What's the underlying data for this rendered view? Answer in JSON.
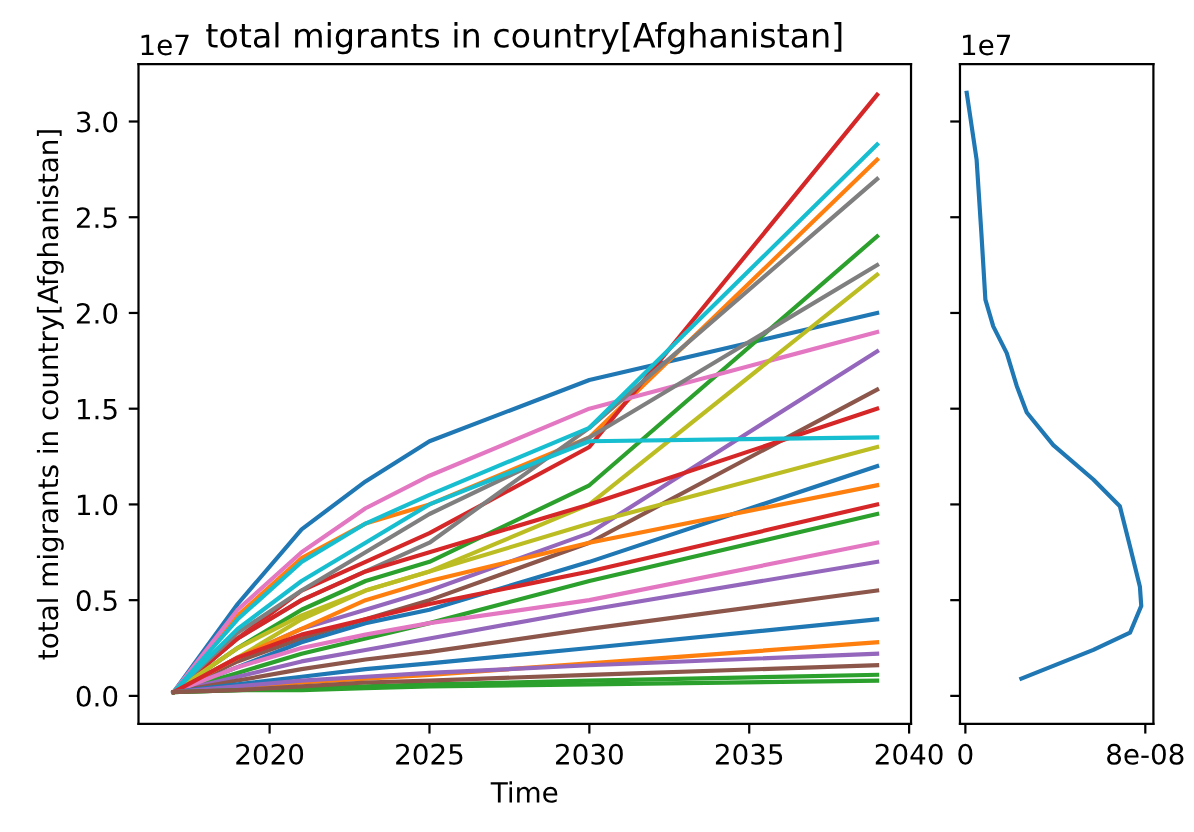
{
  "chart_data": [
    {
      "type": "line",
      "title": "total migrants in country[Afghanistan]",
      "xlabel": "Time",
      "ylabel": "total migrants in country[Afghanistan]",
      "annotations": [
        "1e7"
      ],
      "x": [
        2017,
        2019,
        2021,
        2023,
        2025,
        2030,
        2039
      ],
      "xlim": [
        2015.9,
        2040.06
      ],
      "xticks": [
        2020,
        2025,
        2030,
        2035,
        2040
      ],
      "ylim": [
        -0.146,
        3.3
      ],
      "yticks": [
        {
          "value": 0,
          "label": "0.0"
        },
        0.5,
        {
          "value": 1,
          "label": "1.0"
        },
        1.5,
        {
          "value": 2,
          "label": "2.0"
        },
        2.5,
        {
          "value": 3,
          "label": "3.0"
        }
      ],
      "grid": false,
      "legend": false,
      "marker": "none",
      "line_style": "solid",
      "series": [
        {
          "color": "#1f77b4",
          "values": [
            0.02,
            0.48,
            0.87,
            1.12,
            1.33,
            1.65,
            2.0
          ]
        },
        {
          "color": "#ff7f0e",
          "values": [
            0.02,
            0.42,
            0.72,
            0.9,
            1.0,
            1.35,
            2.8
          ]
        },
        {
          "color": "#2ca02c",
          "values": [
            0.02,
            0.25,
            0.45,
            0.6,
            0.7,
            1.1,
            2.4
          ]
        },
        {
          "color": "#d62728",
          "values": [
            0.02,
            0.3,
            0.55,
            0.7,
            0.85,
            1.3,
            3.14
          ]
        },
        {
          "color": "#9467bd",
          "values": [
            0.02,
            0.2,
            0.35,
            0.45,
            0.55,
            0.85,
            1.8
          ]
        },
        {
          "color": "#8c564b",
          "values": [
            0.02,
            0.18,
            0.3,
            0.4,
            0.5,
            0.8,
            1.6
          ]
        },
        {
          "color": "#e377c2",
          "values": [
            0.02,
            0.45,
            0.75,
            0.98,
            1.15,
            1.5,
            1.9
          ]
        },
        {
          "color": "#7f7f7f",
          "values": [
            0.02,
            0.3,
            0.5,
            0.65,
            0.8,
            1.4,
            2.7
          ]
        },
        {
          "color": "#bcbd22",
          "values": [
            0.02,
            0.2,
            0.4,
            0.55,
            0.65,
            1.0,
            2.2
          ]
        },
        {
          "color": "#17becf",
          "values": [
            0.02,
            0.4,
            0.7,
            0.9,
            1.05,
            1.4,
            2.88
          ]
        },
        {
          "color": "#1f77b4",
          "values": [
            0.02,
            0.15,
            0.28,
            0.38,
            0.45,
            0.7,
            1.2
          ]
        },
        {
          "color": "#ff7f0e",
          "values": [
            0.02,
            0.2,
            0.35,
            0.5,
            0.6,
            0.8,
            1.1
          ]
        },
        {
          "color": "#2ca02c",
          "values": [
            0.02,
            0.12,
            0.22,
            0.3,
            0.38,
            0.6,
            0.95
          ]
        },
        {
          "color": "#d62728",
          "values": [
            0.02,
            0.3,
            0.5,
            0.65,
            0.75,
            1.0,
            1.5
          ]
        },
        {
          "color": "#9467bd",
          "values": [
            0.02,
            0.1,
            0.18,
            0.24,
            0.3,
            0.45,
            0.7
          ]
        },
        {
          "color": "#8c564b",
          "values": [
            0.02,
            0.08,
            0.14,
            0.19,
            0.23,
            0.35,
            0.55
          ]
        },
        {
          "color": "#e377c2",
          "values": [
            0.02,
            0.15,
            0.25,
            0.32,
            0.38,
            0.5,
            0.8
          ]
        },
        {
          "color": "#7f7f7f",
          "values": [
            0.02,
            0.33,
            0.55,
            0.75,
            0.95,
            1.35,
            2.25
          ]
        },
        {
          "color": "#bcbd22",
          "values": [
            0.02,
            0.25,
            0.42,
            0.55,
            0.65,
            0.9,
            1.3
          ]
        },
        {
          "color": "#17becf",
          "values": [
            0.02,
            0.35,
            0.6,
            0.8,
            1.0,
            1.33,
            1.35
          ]
        },
        {
          "color": "#1f77b4",
          "values": [
            0.02,
            0.06,
            0.1,
            0.14,
            0.17,
            0.25,
            0.4
          ]
        },
        {
          "color": "#ff7f0e",
          "values": [
            0.02,
            0.04,
            0.07,
            0.09,
            0.11,
            0.17,
            0.28
          ]
        },
        {
          "color": "#2ca02c",
          "values": [
            0.02,
            0.03,
            0.04,
            0.05,
            0.06,
            0.08,
            0.11
          ]
        },
        {
          "color": "#d62728",
          "values": [
            0.02,
            0.2,
            0.32,
            0.4,
            0.48,
            0.65,
            1.0
          ]
        },
        {
          "color": "#9467bd",
          "values": [
            0.02,
            0.05,
            0.08,
            0.1,
            0.12,
            0.16,
            0.22
          ]
        },
        {
          "color": "#2ca02c",
          "values": [
            0.02,
            0.03,
            0.03,
            0.04,
            0.05,
            0.06,
            0.08
          ]
        },
        {
          "color": "#8c564b",
          "values": [
            0.02,
            0.03,
            0.05,
            0.07,
            0.08,
            0.11,
            0.16
          ]
        }
      ]
    },
    {
      "type": "line",
      "annotations": [
        "1e7"
      ],
      "x": [
        6e-10,
        5e-09,
        7.1e-09,
        8.9e-09,
        1.24e-08,
        1.84e-08,
        2.28e-08,
        2.73e-08,
        3.91e-08,
        5.69e-08,
        6.87e-08,
        7.32e-08,
        7.76e-08,
        7.82e-08,
        7.32e-08,
        5.69e-08,
        2.49e-08
      ],
      "xlim": [
        -2.4e-09,
        8.36e-08
      ],
      "xticks": [
        {
          "value": 0,
          "label": "0"
        },
        {
          "value": 8e-08,
          "label": "8e-08"
        }
      ],
      "ylim": [
        -0.146,
        3.3
      ],
      "yticks": [
        {
          "value": 0,
          "label": null
        },
        {
          "value": 0.5,
          "label": null
        },
        {
          "value": 1,
          "label": null
        },
        {
          "value": 1.5,
          "label": null
        },
        {
          "value": 2,
          "label": null
        },
        {
          "value": 2.5,
          "label": null
        },
        {
          "value": 3,
          "label": null
        }
      ],
      "tick_labels": "x",
      "grid": false,
      "legend": false,
      "marker": "none",
      "line_style": "solid",
      "series": [
        {
          "color": "#1f77b4",
          "values": [
            3.15,
            2.8,
            2.42,
            2.07,
            1.93,
            1.79,
            1.62,
            1.48,
            1.31,
            1.13,
            0.99,
            0.78,
            0.57,
            0.47,
            0.33,
            0.24,
            0.09
          ]
        }
      ]
    }
  ]
}
